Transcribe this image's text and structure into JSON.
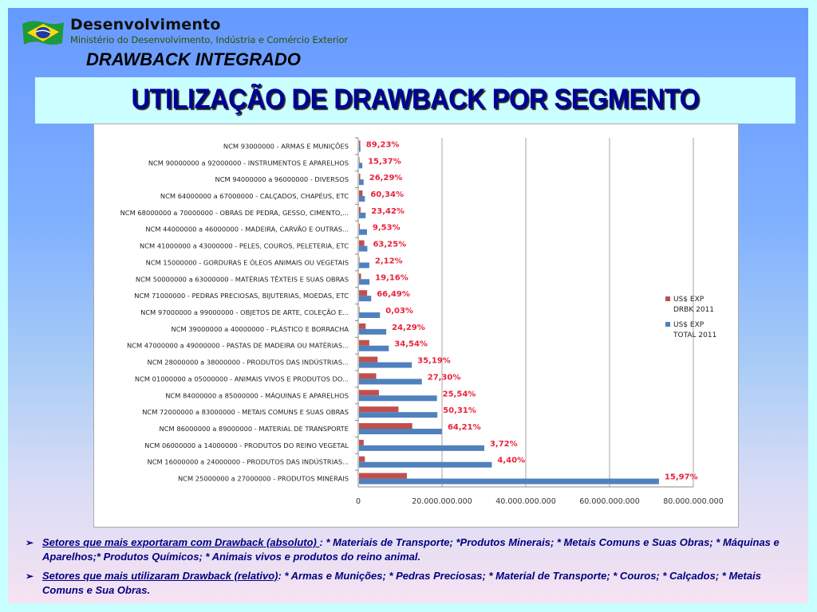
{
  "header": {
    "brand_title": "Desenvolvimento",
    "brand_subtitle": "Ministério do Desenvolvimento, Indústria e Comércio Exterior",
    "program": "DRAWBACK INTEGRADO",
    "logo_icon": "brazil-flag-icon"
  },
  "slide_title": "UTILIZAÇÃO DE DRAWBACK POR SEGMENTO",
  "chart_data": {
    "type": "bar",
    "orientation": "horizontal",
    "title": "",
    "xlabel": "",
    "ylabel": "",
    "xlim": [
      0,
      80000000000
    ],
    "x_ticks": [
      "0",
      "20.000.000.000",
      "40.000.000.000",
      "60.000.000.000",
      "80.000.000.000"
    ],
    "grid": true,
    "legend_position": "right",
    "colors": {
      "drbk": "#c0504d",
      "total": "#4f81bd",
      "pct_label": "#e8233b"
    },
    "categories": [
      "NCM 93000000 - ARMAS E MUNIÇÕES",
      "NCM 90000000 a 92000000 - INSTRUMENTOS E APARELHOS",
      "NCM 94000000 a 96000000 - DIVERSOS",
      "NCM 64000000 a 67000000 - CALÇADOS, CHAPÉUS, ETC",
      "NCM 68000000 a 70000000 - OBRAS DE PEDRA, GESSO, CIMENTO,...",
      "NCM 44000000 a 46000000 - MADEIRA, CARVÃO E OUTRAS...",
      "NCM 41000000 a 43000000 - PELES, COUROS, PELETERIA, ETC",
      "NCM 15000000 - GORDURAS E ÓLEOS ANIMAIS OU VEGETAIS",
      "NCM 50000000 a 63000000 - MATÉRIAS TÊXTEIS E SUAS OBRAS",
      "NCM 71000000 - PEDRAS PRECIOSAS, BIJUTERIAS, MOEDAS, ETC",
      "NCM 97000000 a 99000000 - OBJETOS DE ARTE, COLEÇÃO E...",
      "NCM 39000000 a 40000000 - PLÁSTICO E BORRACHA",
      "NCM 47000000 a 49000000 - PASTAS DE MADEIRA OU MATÉRIAS...",
      "NCM 28000000 a 38000000 - PRODUTOS DAS INDÚSTRIAS...",
      "NCM 01000000 a 05000000 - ANIMAIS VIVOS E PRODUTOS DO...",
      "NCM 84000000 a 85000000 - MÁQUINAS E APARELHOS",
      "NCM 72000000 a 83000000 - METAIS COMUNS E SUAS OBRAS",
      "NCM 86000000 a 89000000 - MATERIAL DE TRANSPORTE",
      "NCM 06000000 a 14000000 - PRODUTOS DO REINO VEGETAL",
      "NCM 16000000 a 24000000 - PRODUTOS DAS INDÚSTRIAS...",
      "NCM 25000000 a 27000000 - PRODUTOS MINERAIS"
    ],
    "series": [
      {
        "name": "US$ EXP DRBK 2011",
        "values": [
          300000000,
          120000000,
          290000000,
          840000000,
          370000000,
          180000000,
          1260000000,
          50000000,
          480000000,
          1930000000,
          1500000,
          1580000000,
          2450000000,
          4430000000,
          4100000000,
          4750000000,
          9410000000,
          12710000000,
          1110000000,
          1390000000,
          11430000000
        ]
      },
      {
        "name": "US$ EXP TOTAL 2011",
        "values": [
          340000000,
          780000000,
          1100000000,
          1400000000,
          1580000000,
          1890000000,
          1990000000,
          2450000000,
          2500000000,
          2900000000,
          5000000000,
          6500000000,
          7100000000,
          12600000000,
          15000000000,
          18600000000,
          18700000000,
          19800000000,
          29900000000,
          31700000000,
          71600000000
        ]
      }
    ],
    "percent_labels": [
      "89,23%",
      "15,37%",
      "26,29%",
      "60,34%",
      "23,42%",
      "9,53%",
      "63,25%",
      "2,12%",
      "19,16%",
      "66,49%",
      "0,03%",
      "24,29%",
      "34,54%",
      "35,19%",
      "27,30%",
      "25,54%",
      "50,31%",
      "64,21%",
      "3,72%",
      "4,40%",
      "15,97%"
    ],
    "legend": [
      {
        "line1": "US$ EXP",
        "line2": "DRBK 2011",
        "color": "#c0504d"
      },
      {
        "line1": "US$ EXP",
        "line2": "TOTAL 2011",
        "color": "#4f81bd"
      }
    ]
  },
  "bullets": [
    {
      "marker": "➢",
      "heading": "Setores que mais exportaram com Drawback (absoluto) ",
      "text": ":  * Materiais de Transporte; *Produtos Minerais; * Metais Comuns e Suas Obras; * Máquinas e Aparelhos;* Produtos Químicos; * Animais vivos e produtos do reino animal."
    },
    {
      "marker": "➢",
      "heading": "Setores que mais utilizaram Drawback (relativo)",
      "text": ": * Armas e Munições; * Pedras Preciosas; * Material de Transporte; * Couros; * Calçados; * Metais Comuns e Sua Obras."
    }
  ]
}
